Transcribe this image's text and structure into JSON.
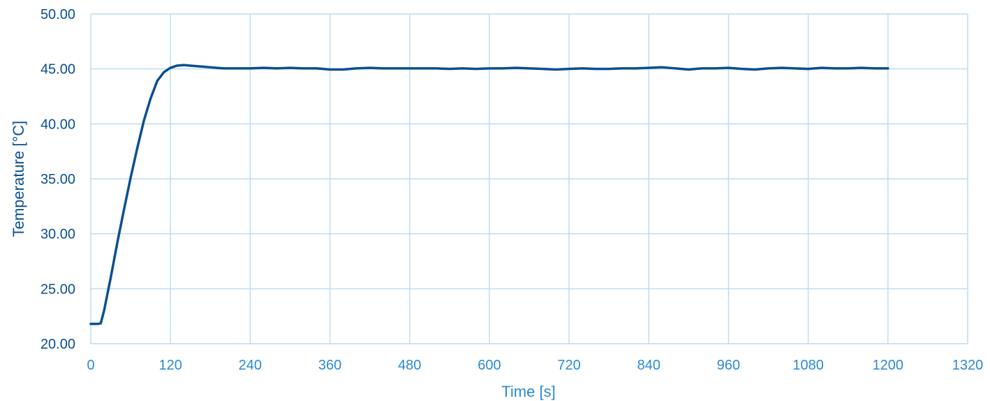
{
  "colors": {
    "series": "#0a4f91",
    "grid": "#bcdcf2",
    "y_tick_text": "#0a4f91",
    "x_tick_text": "#2a8ad4",
    "y_title": "#0a4f91",
    "x_title": "#2a8ad4"
  },
  "chart_data": {
    "type": "line",
    "title": "",
    "xlabel": "Time [s]",
    "ylabel": "Temperature [°C]",
    "xlim": [
      0,
      1320
    ],
    "ylim": [
      20,
      50
    ],
    "x_ticks": [
      0,
      120,
      240,
      360,
      480,
      600,
      720,
      840,
      960,
      1080,
      1200,
      1320
    ],
    "x_tick_labels": [
      "0",
      "120",
      "240",
      "360",
      "480",
      "600",
      "720",
      "840",
      "960",
      "1080",
      "1200",
      "1320"
    ],
    "y_ticks": [
      20,
      25,
      30,
      35,
      40,
      45,
      50
    ],
    "y_tick_labels": [
      "20.00",
      "25.00",
      "30.00",
      "35.00",
      "40.00",
      "45.00",
      "50.00"
    ],
    "grid": true,
    "legend": "none",
    "series": [
      {
        "x": [
          0,
          5,
          10,
          15,
          20,
          30,
          40,
          50,
          60,
          70,
          80,
          90,
          100,
          110,
          120,
          130,
          140,
          150,
          160,
          170,
          180,
          190,
          200,
          220,
          240,
          260,
          280,
          300,
          320,
          340,
          360,
          380,
          400,
          420,
          440,
          460,
          480,
          500,
          520,
          540,
          560,
          580,
          600,
          620,
          640,
          660,
          680,
          700,
          720,
          740,
          760,
          780,
          800,
          820,
          840,
          860,
          880,
          900,
          920,
          940,
          960,
          980,
          1000,
          1020,
          1040,
          1060,
          1080,
          1100,
          1120,
          1140,
          1160,
          1180,
          1200
        ],
        "y": [
          21.8,
          21.8,
          21.8,
          21.85,
          23.0,
          26.0,
          29.2,
          32.2,
          35.1,
          37.8,
          40.3,
          42.3,
          43.9,
          44.7,
          45.1,
          45.3,
          45.35,
          45.3,
          45.25,
          45.2,
          45.15,
          45.1,
          45.05,
          45.05,
          45.05,
          45.1,
          45.05,
          45.1,
          45.05,
          45.05,
          44.95,
          44.95,
          45.05,
          45.1,
          45.05,
          45.05,
          45.05,
          45.05,
          45.05,
          45.0,
          45.05,
          45.0,
          45.05,
          45.05,
          45.1,
          45.05,
          45.0,
          44.95,
          45.0,
          45.05,
          45.0,
          45.0,
          45.05,
          45.05,
          45.1,
          45.15,
          45.05,
          44.95,
          45.05,
          45.05,
          45.1,
          45.0,
          44.95,
          45.05,
          45.1,
          45.05,
          45.0,
          45.1,
          45.05,
          45.05,
          45.1,
          45.05,
          45.05
        ]
      }
    ]
  }
}
